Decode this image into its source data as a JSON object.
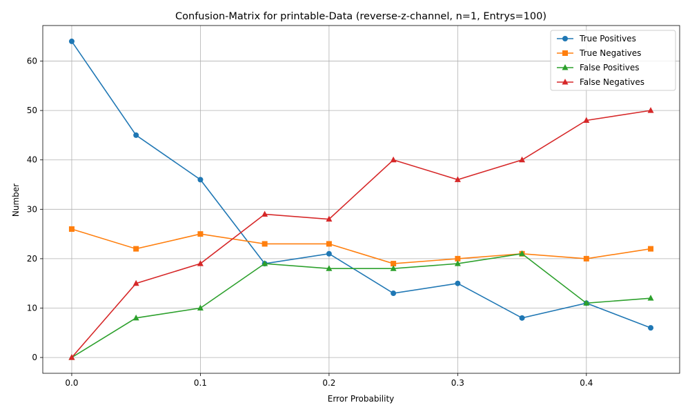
{
  "chart_data": {
    "type": "line",
    "title": "Confusion-Matrix for printable-Data (reverse-z-channel, n=1, Entrys=100)",
    "xlabel": "Error Probability",
    "ylabel": "Number",
    "x": [
      0.0,
      0.05,
      0.1,
      0.15,
      0.2,
      0.25,
      0.3,
      0.35,
      0.4,
      0.45
    ],
    "xlim": [
      -0.0225,
      0.4725
    ],
    "ylim": [
      -3.2,
      67.2
    ],
    "x_ticks": [
      0.0,
      0.1,
      0.2,
      0.3,
      0.4
    ],
    "x_tick_labels": [
      "0.0",
      "0.1",
      "0.2",
      "0.3",
      "0.4"
    ],
    "y_ticks": [
      0,
      10,
      20,
      30,
      40,
      50,
      60
    ],
    "y_tick_labels": [
      "0",
      "10",
      "20",
      "30",
      "40",
      "50",
      "60"
    ],
    "grid": true,
    "legend_position": "top-right",
    "series": [
      {
        "name": "True Positives",
        "color": "#1f77b4",
        "marker": "circle",
        "values": [
          64,
          45,
          36,
          19,
          21,
          13,
          15,
          8,
          11,
          6
        ]
      },
      {
        "name": "True Negatives",
        "color": "#ff7f0e",
        "marker": "square",
        "values": [
          26,
          22,
          25,
          23,
          23,
          19,
          20,
          21,
          20,
          22
        ]
      },
      {
        "name": "False Positives",
        "color": "#2ca02c",
        "marker": "triangle",
        "values": [
          0,
          8,
          10,
          19,
          18,
          18,
          19,
          21,
          11,
          12
        ]
      },
      {
        "name": "False Negatives",
        "color": "#d62728",
        "marker": "triangle",
        "values": [
          0,
          15,
          19,
          29,
          28,
          40,
          36,
          40,
          48,
          50
        ]
      }
    ]
  }
}
